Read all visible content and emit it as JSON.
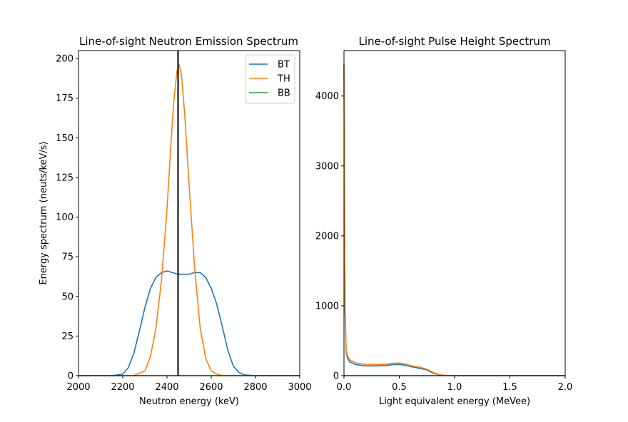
{
  "chart_data": [
    {
      "type": "line",
      "title": "Line-of-sight Neutron Emission Spectrum",
      "xlabel": "Neutron energy (keV)",
      "ylabel": "Energy spectrum (neuts/keV/s)",
      "xlim": [
        2000,
        3000
      ],
      "ylim": [
        0,
        205
      ],
      "xticks": [
        2000,
        2200,
        2400,
        2600,
        2800,
        3000
      ],
      "yticks": [
        0,
        25,
        50,
        75,
        100,
        125,
        150,
        175,
        200
      ],
      "vline_x": 2450,
      "vline_color": "#000000",
      "legend": "top-right",
      "series": [
        {
          "name": "BT",
          "color": "#1f77b4",
          "x": [
            2000,
            2150,
            2200,
            2225,
            2250,
            2275,
            2300,
            2325,
            2350,
            2375,
            2400,
            2425,
            2450,
            2475,
            2500,
            2525,
            2550,
            2575,
            2600,
            2625,
            2650,
            2675,
            2700,
            2725,
            2750,
            2800,
            3000
          ],
          "y": [
            0,
            0,
            1,
            5,
            14,
            28,
            43,
            55,
            62,
            65,
            66,
            65,
            64,
            64,
            64,
            65,
            65,
            62,
            55,
            45,
            31,
            16,
            6,
            2,
            0.5,
            0,
            0
          ]
        },
        {
          "name": "TH",
          "color": "#ff7f0e",
          "x": [
            2000,
            2250,
            2300,
            2325,
            2350,
            2375,
            2400,
            2415,
            2430,
            2445,
            2455,
            2465,
            2480,
            2500,
            2525,
            2550,
            2575,
            2600,
            2625,
            2650,
            2700,
            3000
          ],
          "y": [
            0,
            0,
            3,
            12,
            30,
            60,
            105,
            140,
            172,
            192,
            196,
            190,
            165,
            120,
            68,
            30,
            11,
            3,
            1,
            0,
            0,
            0
          ]
        },
        {
          "name": "BB",
          "color": "#2ca02c",
          "x": [
            2000,
            3000
          ],
          "y": [
            0,
            0
          ]
        }
      ]
    },
    {
      "type": "line",
      "title": "Line-of-sight Pulse Height Spectrum",
      "xlabel": "Light equivalent energy (MeVee)",
      "ylabel": "",
      "xlim": [
        0,
        2
      ],
      "ylim": [
        0,
        4650
      ],
      "xticks": [
        0.0,
        0.5,
        1.0,
        1.5,
        2.0
      ],
      "xtick_labels": [
        "0.0",
        "0.5",
        "1.0",
        "1.5",
        "2.0"
      ],
      "yticks": [
        0,
        1000,
        2000,
        3000,
        4000
      ],
      "series": [
        {
          "name": "BT",
          "color": "#1f77b4",
          "x": [
            0.0,
            0.005,
            0.01,
            0.02,
            0.03,
            0.05,
            0.1,
            0.2,
            0.3,
            0.4,
            0.45,
            0.5,
            0.55,
            0.6,
            0.7,
            0.75,
            0.8,
            0.85,
            0.9,
            0.95,
            1.0,
            2.0
          ],
          "y": [
            4450,
            2500,
            900,
            330,
            260,
            200,
            160,
            140,
            140,
            150,
            158,
            160,
            150,
            130,
            100,
            80,
            40,
            15,
            5,
            0,
            0,
            0
          ]
        },
        {
          "name": "TH",
          "color": "#ff7f0e",
          "x": [
            0.0,
            0.005,
            0.01,
            0.02,
            0.03,
            0.05,
            0.1,
            0.2,
            0.3,
            0.4,
            0.45,
            0.5,
            0.55,
            0.6,
            0.7,
            0.75,
            0.8,
            0.85,
            0.9,
            0.95,
            1.0,
            2.0
          ],
          "y": [
            4450,
            2600,
            1000,
            360,
            290,
            230,
            185,
            160,
            158,
            165,
            178,
            182,
            170,
            145,
            115,
            92,
            50,
            20,
            6,
            0,
            0,
            0
          ]
        },
        {
          "name": "BB",
          "color": "#2ca02c",
          "x": [
            0,
            2
          ],
          "y": [
            0,
            0
          ]
        }
      ]
    }
  ]
}
